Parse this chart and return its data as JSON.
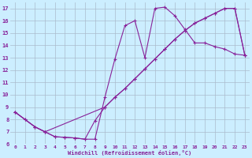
{
  "background_color": "#cceeff",
  "grid_color": "#aabbcc",
  "line_color": "#882299",
  "xlim": [
    -0.5,
    23.5
  ],
  "ylim": [
    6,
    17.5
  ],
  "xticks": [
    0,
    1,
    2,
    3,
    4,
    5,
    6,
    7,
    8,
    9,
    10,
    11,
    12,
    13,
    14,
    15,
    16,
    17,
    18,
    19,
    20,
    21,
    22,
    23
  ],
  "yticks": [
    6,
    7,
    8,
    9,
    10,
    11,
    12,
    13,
    14,
    15,
    16,
    17
  ],
  "xlabel": "Windchill (Refroidissement éolien,°C)",
  "curve1_x": [
    0,
    1,
    2,
    3,
    4,
    5,
    6,
    7,
    8,
    9,
    10,
    11,
    12,
    13,
    14,
    15,
    16,
    17,
    18,
    19,
    20,
    21,
    22,
    23
  ],
  "curve1_y": [
    8.6,
    8.0,
    7.4,
    7.0,
    6.6,
    6.55,
    6.5,
    6.4,
    6.4,
    9.8,
    12.9,
    15.6,
    16.0,
    13.0,
    17.0,
    17.1,
    16.4,
    15.3,
    14.2,
    14.2,
    13.9,
    13.7,
    13.3,
    13.2
  ],
  "curve2_x": [
    0,
    2,
    3,
    9,
    10,
    11,
    12,
    13,
    14,
    15,
    16,
    17,
    18,
    19,
    20,
    21,
    22,
    23
  ],
  "curve2_y": [
    8.6,
    7.4,
    7.0,
    9.0,
    9.8,
    10.5,
    11.3,
    12.1,
    12.9,
    13.7,
    14.5,
    15.2,
    15.8,
    16.2,
    16.6,
    17.0,
    17.0,
    13.2
  ],
  "curve3_x": [
    0,
    1,
    2,
    3,
    4,
    5,
    6,
    7,
    8,
    9,
    10,
    11,
    12,
    13,
    14,
    15,
    16,
    17,
    18,
    19,
    20,
    21,
    22,
    23
  ],
  "curve3_y": [
    8.6,
    8.0,
    7.4,
    7.0,
    6.6,
    6.55,
    6.5,
    6.4,
    7.9,
    9.0,
    9.8,
    10.5,
    11.3,
    12.1,
    12.9,
    13.7,
    14.5,
    15.2,
    15.8,
    16.2,
    16.6,
    17.0,
    17.0,
    13.2
  ]
}
